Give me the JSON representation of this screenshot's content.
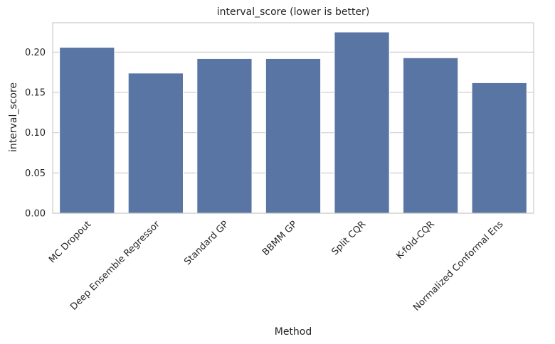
{
  "chart_data": {
    "type": "bar",
    "title": "interval_score (lower is better)",
    "xlabel": "Method",
    "ylabel": "interval_score",
    "categories": [
      "MC Dropout",
      "Deep Ensemble Regressor",
      "Standard GP",
      "BBMM GP",
      "Split CQR",
      "K-fold-CQR",
      "Normalized Conformal Ens"
    ],
    "values": [
      0.206,
      0.174,
      0.192,
      0.192,
      0.225,
      0.193,
      0.162
    ],
    "ylim": [
      0,
      0.2365
    ],
    "yticks": [
      0.0,
      0.05,
      0.1,
      0.15,
      0.2
    ],
    "ytick_labels": [
      "0.00",
      "0.05",
      "0.10",
      "0.15",
      "0.20"
    ],
    "grid": true,
    "bar_color": "#5975a4",
    "grid_color": "#d0d0d0",
    "frame_color": "#cccccc"
  }
}
